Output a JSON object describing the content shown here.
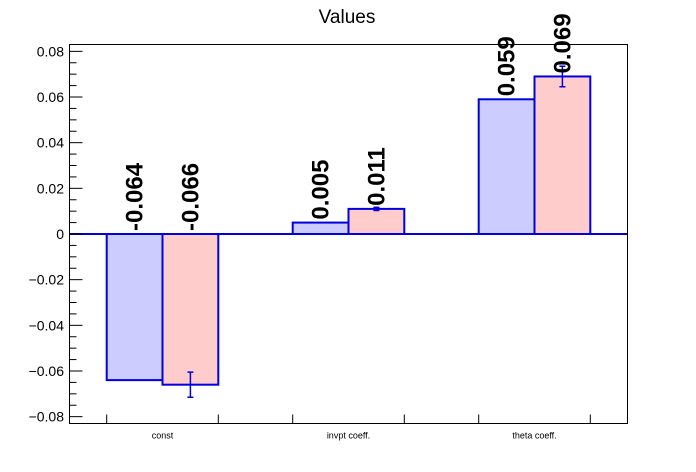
{
  "chart_data": {
    "type": "bar",
    "title": "Values",
    "xlabel": "",
    "ylabel": "",
    "categories": [
      "const",
      "invpt coeff.",
      "theta coeff."
    ],
    "ylim": [
      -0.083,
      0.083
    ],
    "yticks": [
      "0.08",
      "0.06",
      "0.04",
      "0.02",
      "0",
      "−0.02",
      "−0.04",
      "−0.06",
      "−0.08"
    ],
    "ytick_values": [
      0.08,
      0.06,
      0.04,
      0.02,
      0,
      -0.02,
      -0.04,
      -0.06,
      -0.08
    ],
    "grid": false,
    "series": [
      {
        "values": [
          -0.064,
          0.005,
          0.059
        ],
        "labels": [
          "-0.064",
          "0.005",
          "0.059"
        ],
        "errors": [
          0,
          0,
          0
        ],
        "fill": "#ccccff",
        "stroke": "#0000e0"
      },
      {
        "values": [
          -0.066,
          0.011,
          0.069
        ],
        "labels": [
          "-0.066",
          "0.011",
          "0.069"
        ],
        "errors": [
          0.0055,
          0.0007,
          0.0045
        ],
        "fill": "#ffcccc",
        "stroke": "#0000e0"
      }
    ]
  }
}
